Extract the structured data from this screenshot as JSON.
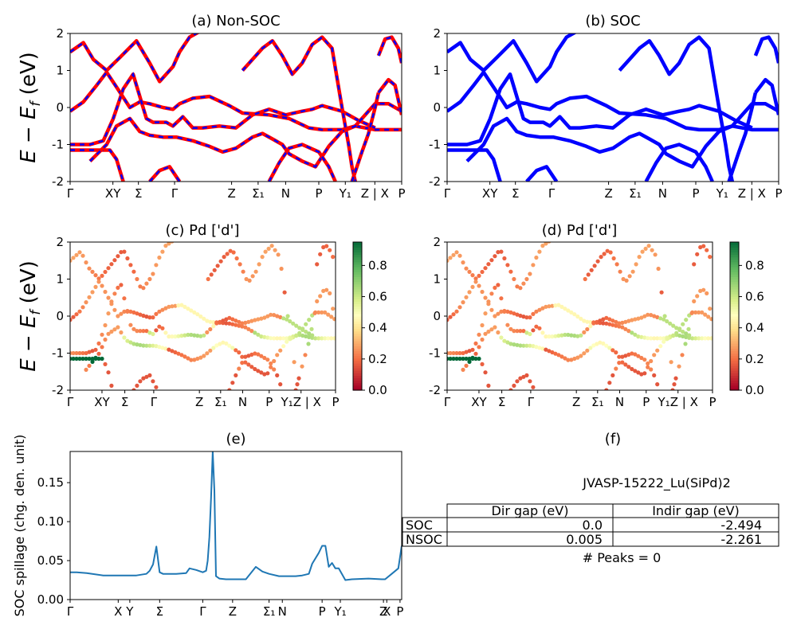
{
  "chart_data": [
    {
      "id": "a",
      "type": "line",
      "title": "(a) Non-SOC",
      "ylabel": "E − E_f (eV)",
      "ylim": [
        -2,
        2
      ],
      "yticks": [
        -2,
        -1,
        0,
        1,
        2
      ],
      "kpath_labels": [
        {
          "label": "Γ",
          "x": 0.0
        },
        {
          "label": "XY",
          "x": 0.129
        },
        {
          "label": "Σ",
          "x": 0.206
        },
        {
          "label": "Γ",
          "x": 0.315
        },
        {
          "label": "Z",
          "x": 0.487
        },
        {
          "label": "Σ₁",
          "x": 0.567
        },
        {
          "label": "N",
          "x": 0.65
        },
        {
          "label": "P",
          "x": 0.75
        },
        {
          "label": "Y₁",
          "x": 0.83
        },
        {
          "label": "Z | X",
          "x": 0.919
        },
        {
          "label": "P",
          "x": 1.0
        }
      ],
      "series": [
        {
          "values": [
            [
              0.0,
              1.5
            ],
            [
              0.04,
              1.75
            ],
            [
              0.07,
              1.3
            ],
            [
              0.11,
              1.0
            ],
            [
              0.15,
              1.35
            ],
            [
              0.2,
              1.8
            ],
            [
              0.24,
              1.2
            ],
            [
              0.27,
              0.7
            ],
            [
              0.31,
              1.1
            ],
            [
              0.33,
              1.5
            ],
            [
              0.36,
              1.9
            ],
            [
              0.4,
              2.1
            ]
          ]
        },
        {
          "values": [
            [
              0.0,
              -0.1
            ],
            [
              0.04,
              0.15
            ],
            [
              0.08,
              0.6
            ],
            [
              0.11,
              0.95
            ],
            [
              0.14,
              0.55
            ],
            [
              0.18,
              0.0
            ],
            [
              0.21,
              0.15
            ],
            [
              0.24,
              0.1
            ],
            [
              0.28,
              0.0
            ],
            [
              0.31,
              -0.05
            ],
            [
              0.33,
              0.1
            ],
            [
              0.37,
              0.25
            ],
            [
              0.42,
              0.3
            ],
            [
              0.48,
              0.05
            ],
            [
              0.52,
              -0.15
            ],
            [
              0.6,
              -0.2
            ],
            [
              0.66,
              -0.3
            ],
            [
              0.72,
              -0.55
            ],
            [
              0.76,
              -0.6
            ],
            [
              0.82,
              -0.6
            ],
            [
              0.86,
              -0.5
            ],
            [
              0.92,
              -0.6
            ],
            [
              0.96,
              -0.6
            ],
            [
              1.0,
              -0.6
            ]
          ]
        },
        {
          "values": [
            [
              0.0,
              -1.0
            ],
            [
              0.06,
              -1.0
            ],
            [
              0.1,
              -0.9
            ],
            [
              0.13,
              -0.3
            ],
            [
              0.16,
              0.5
            ],
            [
              0.19,
              0.9
            ],
            [
              0.21,
              0.3
            ],
            [
              0.23,
              -0.3
            ],
            [
              0.25,
              -0.4
            ],
            [
              0.29,
              -0.4
            ],
            [
              0.31,
              -0.5
            ],
            [
              0.34,
              -0.25
            ],
            [
              0.37,
              -0.55
            ],
            [
              0.4,
              -0.55
            ],
            [
              0.45,
              -0.5
            ],
            [
              0.5,
              -0.55
            ],
            [
              0.55,
              -0.2
            ],
            [
              0.6,
              -0.05
            ],
            [
              0.65,
              -0.2
            ],
            [
              0.7,
              -0.1
            ],
            [
              0.73,
              -0.05
            ],
            [
              0.76,
              0.05
            ],
            [
              0.82,
              -0.1
            ],
            [
              0.87,
              -0.35
            ],
            [
              0.92,
              -0.55
            ]
          ]
        },
        {
          "values": [
            [
              0.0,
              -1.15
            ],
            [
              0.08,
              -1.15
            ],
            [
              0.12,
              -1.15
            ],
            [
              0.14,
              -1.4
            ],
            [
              0.16,
              -2.0
            ]
          ]
        },
        {
          "values": [
            [
              0.06,
              -1.45
            ],
            [
              0.11,
              -1.0
            ],
            [
              0.14,
              -0.5
            ],
            [
              0.18,
              -0.3
            ],
            [
              0.21,
              -0.65
            ],
            [
              0.24,
              -0.75
            ],
            [
              0.28,
              -0.8
            ],
            [
              0.32,
              -0.8
            ],
            [
              0.37,
              -0.9
            ],
            [
              0.42,
              -1.05
            ],
            [
              0.46,
              -1.2
            ],
            [
              0.5,
              -1.1
            ],
            [
              0.55,
              -0.8
            ],
            [
              0.58,
              -0.7
            ],
            [
              0.61,
              -0.85
            ],
            [
              0.64,
              -1.0
            ],
            [
              0.66,
              -1.25
            ],
            [
              0.7,
              -1.45
            ],
            [
              0.74,
              -1.6
            ],
            [
              0.78,
              -1.05
            ],
            [
              0.82,
              -0.65
            ],
            [
              0.86,
              -0.5
            ],
            [
              0.92,
              0.1
            ],
            [
              0.96,
              0.1
            ],
            [
              1.0,
              -0.1
            ]
          ]
        },
        {
          "values": [
            [
              0.24,
              -2.0
            ],
            [
              0.27,
              -1.7
            ],
            [
              0.3,
              -1.6
            ],
            [
              0.33,
              -2.0
            ]
          ]
        },
        {
          "values": [
            [
              0.52,
              1.0
            ],
            [
              0.55,
              1.3
            ],
            [
              0.58,
              1.6
            ],
            [
              0.61,
              1.8
            ],
            [
              0.64,
              1.4
            ],
            [
              0.67,
              0.9
            ],
            [
              0.7,
              1.2
            ],
            [
              0.73,
              1.7
            ],
            [
              0.76,
              1.9
            ],
            [
              0.79,
              1.6
            ],
            [
              0.82,
              0.0
            ],
            [
              0.84,
              -1.0
            ],
            [
              0.85,
              -1.6
            ],
            [
              0.86,
              -2.0
            ]
          ]
        },
        {
          "values": [
            [
              0.85,
              -2.0
            ],
            [
              0.88,
              -1.2
            ],
            [
              0.9,
              -0.7
            ],
            [
              0.92,
              0.0
            ],
            [
              0.93,
              0.4
            ]
          ]
        },
        {
          "values": [
            [
              0.93,
              1.4
            ],
            [
              0.95,
              1.85
            ],
            [
              0.97,
              1.9
            ],
            [
              0.99,
              1.6
            ],
            [
              1.0,
              1.2
            ]
          ]
        },
        {
          "values": [
            [
              0.93,
              0.4
            ],
            [
              0.96,
              0.75
            ],
            [
              0.98,
              0.6
            ],
            [
              1.0,
              -0.2
            ]
          ]
        },
        {
          "values": [
            [
              0.6,
              -2.0
            ],
            [
              0.63,
              -1.5
            ],
            [
              0.66,
              -1.1
            ],
            [
              0.7,
              -1.0
            ],
            [
              0.75,
              -1.2
            ],
            [
              0.78,
              -1.6
            ],
            [
              0.8,
              -2.0
            ]
          ]
        }
      ]
    },
    {
      "id": "b",
      "type": "line",
      "title": "(b) SOC",
      "ylim": [
        -2,
        2
      ],
      "yticks": [
        -2,
        -1,
        0,
        1,
        2
      ],
      "kpath_labels": [
        {
          "label": "Γ",
          "x": 0.0
        },
        {
          "label": "XY",
          "x": 0.129
        },
        {
          "label": "Σ",
          "x": 0.206
        },
        {
          "label": "Γ",
          "x": 0.315
        },
        {
          "label": "Z",
          "x": 0.487
        },
        {
          "label": "Σ₁",
          "x": 0.567
        },
        {
          "label": "N",
          "x": 0.65
        },
        {
          "label": "P",
          "x": 0.75
        },
        {
          "label": "Y₁",
          "x": 0.83
        },
        {
          "label": "Z | X",
          "x": 0.919
        },
        {
          "label": "P",
          "x": 1.0
        }
      ]
    },
    {
      "id": "c",
      "type": "scatter",
      "title": "(c)  Pd ['d']",
      "ylabel": "E − E_f (eV)",
      "ylim": [
        -2,
        2
      ],
      "yticks": [
        -2,
        -1,
        0,
        1,
        2
      ],
      "colorbar": {
        "colormap": "RdYlGn",
        "range": [
          0.0,
          0.95
        ],
        "ticks": [
          "0.0",
          "0.2",
          "0.4",
          "0.6",
          "0.8"
        ]
      },
      "kpath_labels": [
        {
          "label": "Γ",
          "x": 0.0
        },
        {
          "label": "XY",
          "x": 0.12
        },
        {
          "label": "Σ",
          "x": 0.206
        },
        {
          "label": "Γ",
          "x": 0.315
        },
        {
          "label": "Z",
          "x": 0.487
        },
        {
          "label": "Σ₁",
          "x": 0.567
        },
        {
          "label": "N",
          "x": 0.65
        },
        {
          "label": "P",
          "x": 0.75
        },
        {
          "label": "Y₁Z | X",
          "x": 0.87
        },
        {
          "label": "P",
          "x": 1.0
        }
      ]
    },
    {
      "id": "d",
      "type": "scatter",
      "title": "(d) Pd ['d']",
      "ylim": [
        -2,
        2
      ],
      "yticks": [
        -2,
        -1,
        0,
        1,
        2
      ],
      "colorbar": {
        "colormap": "RdYlGn",
        "range": [
          0.0,
          0.95
        ],
        "ticks": [
          "0.0",
          "0.2",
          "0.4",
          "0.6",
          "0.8"
        ]
      },
      "kpath_labels": [
        {
          "label": "Γ",
          "x": 0.0
        },
        {
          "label": "XY",
          "x": 0.12
        },
        {
          "label": "Σ",
          "x": 0.206
        },
        {
          "label": "Γ",
          "x": 0.315
        },
        {
          "label": "Z",
          "x": 0.487
        },
        {
          "label": "Σ₁",
          "x": 0.567
        },
        {
          "label": "N",
          "x": 0.65
        },
        {
          "label": "P",
          "x": 0.75
        },
        {
          "label": "Y₁Z | X",
          "x": 0.87
        },
        {
          "label": "P",
          "x": 1.0
        }
      ]
    },
    {
      "id": "e",
      "type": "line",
      "title": "(e)",
      "ylabel": "SOC spillage (chg. den. unit)",
      "ylim": [
        0.0,
        0.19
      ],
      "yticks": [
        "0.00",
        "0.05",
        "0.10",
        "0.15"
      ],
      "kpath_labels": [
        {
          "label": "Γ",
          "x": 0.0
        },
        {
          "label": "X",
          "x": 0.145
        },
        {
          "label": "Y",
          "x": 0.18
        },
        {
          "label": "Σ",
          "x": 0.27
        },
        {
          "label": "Γ",
          "x": 0.4
        },
        {
          "label": "Z",
          "x": 0.49
        },
        {
          "label": "Σ₁",
          "x": 0.6
        },
        {
          "label": "N",
          "x": 0.64
        },
        {
          "label": "P",
          "x": 0.76
        },
        {
          "label": "Y₁",
          "x": 0.815
        },
        {
          "label": "Z",
          "x": 0.945
        },
        {
          "label": "X",
          "x": 0.955
        },
        {
          "label": "P",
          "x": 0.995
        }
      ],
      "x": [
        0.0,
        0.02,
        0.05,
        0.1,
        0.15,
        0.2,
        0.23,
        0.24,
        0.25,
        0.26,
        0.27,
        0.28,
        0.3,
        0.32,
        0.35,
        0.36,
        0.38,
        0.4,
        0.41,
        0.415,
        0.42,
        0.425,
        0.43,
        0.435,
        0.44,
        0.45,
        0.47,
        0.5,
        0.53,
        0.56,
        0.58,
        0.6,
        0.63,
        0.68,
        0.7,
        0.72,
        0.73,
        0.75,
        0.76,
        0.77,
        0.78,
        0.79,
        0.8,
        0.81,
        0.83,
        0.85,
        0.9,
        0.94,
        0.95,
        0.97,
        0.99,
        1.0
      ],
      "values": [
        0.035,
        0.035,
        0.034,
        0.031,
        0.031,
        0.031,
        0.033,
        0.037,
        0.045,
        0.068,
        0.035,
        0.033,
        0.033,
        0.033,
        0.034,
        0.04,
        0.038,
        0.035,
        0.037,
        0.05,
        0.08,
        0.13,
        0.19,
        0.14,
        0.03,
        0.027,
        0.026,
        0.026,
        0.026,
        0.042,
        0.036,
        0.033,
        0.03,
        0.03,
        0.031,
        0.033,
        0.046,
        0.06,
        0.069,
        0.069,
        0.042,
        0.047,
        0.04,
        0.04,
        0.025,
        0.026,
        0.027,
        0.026,
        0.026,
        0.033,
        0.04,
        0.069
      ]
    }
  ],
  "info": {
    "title": "JVASP-15222_Lu(SiPd)2",
    "table": {
      "col_labels": [
        "Dir gap (eV)",
        "Indir gap (eV)"
      ],
      "rows": [
        {
          "label": "SOC",
          "dir": "0.0",
          "indir": "-2.494"
        },
        {
          "label": "NSOC",
          "dir": "0.005",
          "indir": "-2.261"
        }
      ]
    },
    "peaks": "# Peaks = 0"
  },
  "colors": {
    "nonsoc_line": "#ff0000",
    "nonsoc_dash": "#0000ff",
    "soc_line": "#0000ff",
    "spillage_line": "#1f77b4"
  }
}
